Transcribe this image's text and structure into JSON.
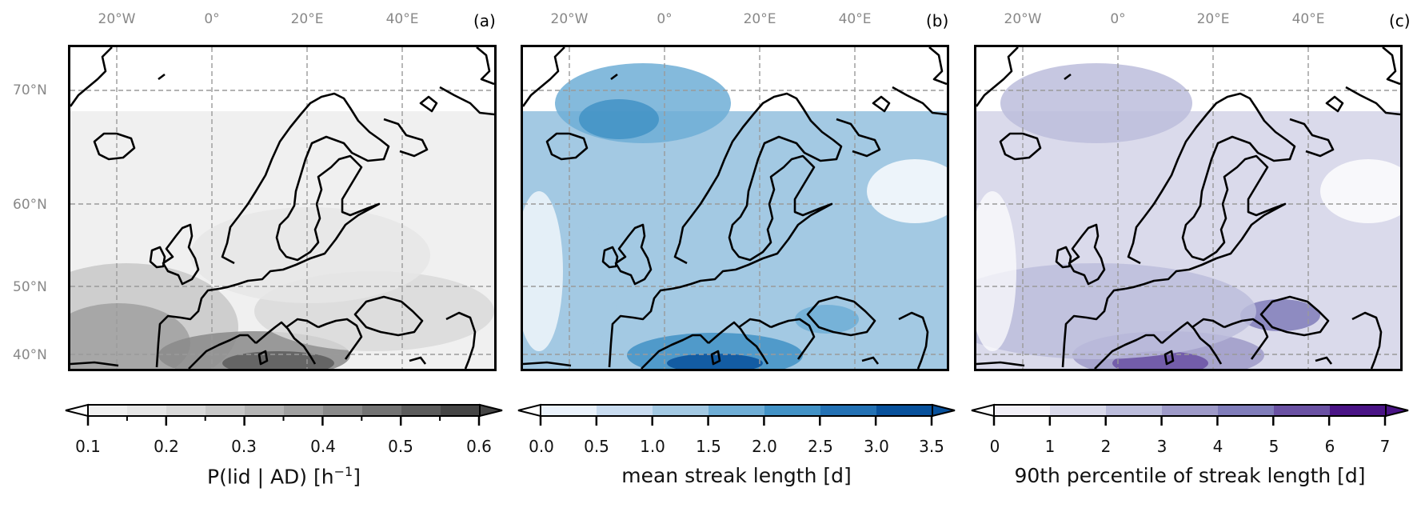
{
  "panels": [
    {
      "id": "a",
      "panel_label": "(a)",
      "lon_labels": [
        "20°W",
        "0°",
        "20°E",
        "40°E"
      ],
      "lat_labels": [
        "70°N",
        "60°N",
        "50°N",
        "40°N"
      ],
      "colorbar": {
        "label_main": "P(lid | AD) [h",
        "label_sup": "−1",
        "label_end": "]",
        "ticks": [
          "0.1",
          "0.2",
          "0.3",
          "0.4",
          "0.5",
          "0.6"
        ],
        "range": [
          0.1,
          0.6
        ],
        "colors": [
          "#f0f0f0",
          "#e6e6e6",
          "#d9d9d9",
          "#c8c8c8",
          "#b5b5b5",
          "#a0a0a0",
          "#8a8a8a",
          "#737373",
          "#5c5c5c",
          "#454545"
        ],
        "extend": "both"
      },
      "colormap": "greys",
      "hotspot": "Mediterranean / southwest Europe"
    },
    {
      "id": "b",
      "panel_label": "(b)",
      "lon_labels": [
        "20°W",
        "0°",
        "20°E",
        "40°E"
      ],
      "lat_labels": [],
      "colorbar": {
        "label_main": "mean streak length  [d]",
        "label_sup": "",
        "label_end": "",
        "ticks": [
          "0.0",
          "0.5",
          "1.0",
          "1.5",
          "2.0",
          "2.5",
          "3.0",
          "3.5"
        ],
        "range": [
          0,
          3.5
        ],
        "colors": [
          "#eaf2fb",
          "#c9dcf0",
          "#a3c9e3",
          "#6faed6",
          "#4292c6",
          "#2371b4",
          "#08519c"
        ],
        "extend": "both"
      },
      "colormap": "blues",
      "hotspot": "Western Mediterranean"
    },
    {
      "id": "c",
      "panel_label": "(c)",
      "lon_labels": [
        "20°W",
        "0°",
        "20°E",
        "40°E"
      ],
      "lat_labels": [],
      "colorbar": {
        "label_main": "90th percentile of streak length  [d]",
        "label_sup": "",
        "label_end": "",
        "ticks": [
          "0",
          "1",
          "2",
          "3",
          "4",
          "5",
          "6",
          "7"
        ],
        "range": [
          0,
          7
        ],
        "colors": [
          "#f2f0f7",
          "#dadaeb",
          "#bcbddc",
          "#9e9ac8",
          "#807dba",
          "#6a51a3",
          "#4a1486"
        ],
        "extend": "both"
      },
      "colormap": "purples",
      "hotspot": "Western Mediterranean"
    }
  ]
}
